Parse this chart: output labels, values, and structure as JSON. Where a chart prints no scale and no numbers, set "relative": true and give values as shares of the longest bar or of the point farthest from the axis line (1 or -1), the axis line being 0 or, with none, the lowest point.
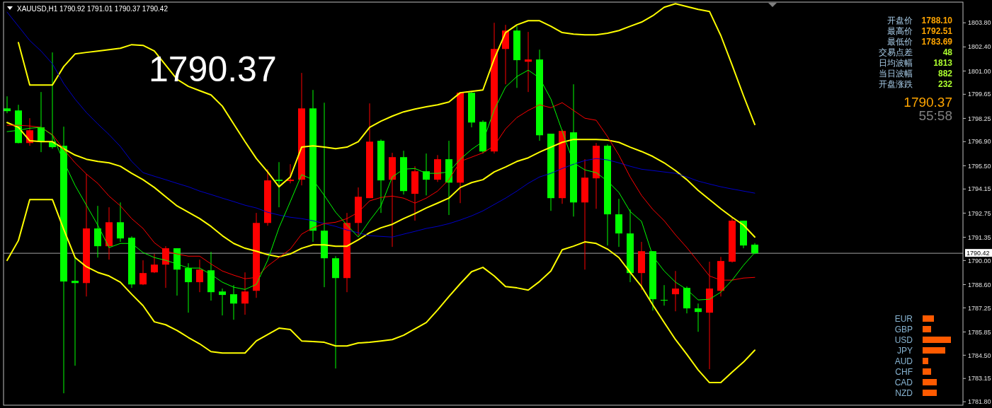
{
  "chart_data": [
    {
      "type": "candlestick",
      "title": "XAUUSD,H1  1790.92 1791.01 1790.37 1790.42",
      "categories": [
        null,
        null,
        null,
        null,
        null,
        null,
        null,
        null,
        null,
        null,
        null,
        null,
        null,
        null,
        null,
        null,
        null,
        null,
        null,
        null,
        null,
        null,
        null,
        null,
        null,
        null,
        null,
        null,
        null,
        null,
        null,
        null,
        null,
        null,
        null,
        null,
        null,
        null,
        null,
        null,
        null,
        null,
        null,
        null,
        null,
        null,
        null,
        null,
        null,
        null,
        null,
        null,
        null,
        null,
        null,
        null,
        null,
        null,
        null,
        null,
        null,
        null,
        null,
        null,
        null,
        null,
        null
      ],
      "ylim": [
        1781.6,
        1805.0
      ],
      "yticks": [
        {
          "value": 1803.8,
          "label": "1803.80"
        },
        {
          "value": 1802.4,
          "label": "1802.40"
        },
        {
          "value": 1801,
          "label": "1801.00"
        },
        1799.65,
        1798.25,
        {
          "value": 1796.9,
          "label": "1796.90"
        },
        {
          "value": 1795.5,
          "label": "1795.50"
        },
        1794.15,
        1792.75,
        1791.35,
        {
          "value": 1790,
          "label": "1790.00"
        },
        {
          "value": 1788.6,
          "label": "1788.60"
        },
        1787.25,
        1785.85,
        {
          "value": 1784.5,
          "label": "1784.50"
        },
        1783.15,
        {
          "value": 1781.8,
          "label": "1781.80"
        }
      ],
      "tick_labels": "y",
      "series": [
        {
          "type": "line",
          "color": "#ffff00",
          "values": [
            null,
            1802.65,
            1800.19,
            1800.19,
            1800.19,
            1801.26,
            1801.99,
            1802.08,
            1802.16,
            1802.24,
            1802.32,
            1802.53,
            1802.49,
            1802.16,
            1801.34,
            1800.52,
            1800.11,
            1799.86,
            1799.61,
            1798.96,
            1797.93,
            1796.9,
            1795.92,
            1795.14,
            1794.28,
            1794.85,
            1796.58,
            1796.66,
            1796.58,
            1796.49,
            1796.58,
            1796.9,
            1797.73,
            1798.09,
            1798.38,
            1798.63,
            1798.79,
            1798.92,
            1799.04,
            1799.2,
            1799.74,
            1799.82,
            1799.9,
            1801.71,
            1803.23,
            1803.68,
            1803.92,
            1803.92,
            1803.6,
            1803.23,
            1803.14,
            1803.1,
            1803.1,
            1803.19,
            1803.35,
            1803.6,
            1803.84,
            1804.21,
            1804.7,
            1804.91,
            1804.74,
            1804.58,
            1804.46,
            1803.06,
            1801.34,
            1799.57,
            1797.89
          ]
        },
        {
          "type": "line",
          "color": "#ffff00",
          "values": [
            1798.01,
            1797.73,
            1796.95,
            1796.9,
            1796.9,
            1796.49,
            1796.12,
            1795.88,
            1795.75,
            1795.67,
            1795.47,
            1795.06,
            1794.69,
            1794.24,
            1793.7,
            1793.17,
            1792.8,
            1792.43,
            1791.98,
            1791.44,
            1790.99,
            1790.71,
            1790.54,
            1790.34,
            1790.21,
            1790.38,
            1790.71,
            1790.91,
            1790.91,
            1790.83,
            1790.83,
            1791.2,
            1791.61,
            1791.9,
            1792.1,
            1792.43,
            1792.72,
            1793.05,
            1793.33,
            1793.62,
            1794.24,
            1794.52,
            1794.69,
            1795.14,
            1795.43,
            1795.75,
            1795.96,
            1796.29,
            1796.58,
            1796.86,
            1797.03,
            1797.03,
            1797.03,
            1796.99,
            1796.86,
            1796.58,
            1796.33,
            1796.04,
            1795.67,
            1795.22,
            1794.69,
            1794.07,
            1793.54,
            1793.0,
            1792.51,
            1792.06,
            1791.36
          ]
        },
        {
          "type": "line",
          "color": "#ffff00",
          "values": [
            1790.01,
            1791.16,
            1793.54,
            1793.54,
            1793.54,
            1791.81,
            1790.17,
            1789.64,
            1789.31,
            1789.1,
            1788.74,
            1788.04,
            1787.38,
            1786.44,
            1786.27,
            1785.94,
            1785.53,
            1785.16,
            1784.71,
            1784.63,
            1784.63,
            1784.63,
            1785.33,
            1785.7,
            1786.07,
            1785.99,
            1785.33,
            1785.29,
            1785.25,
            1785.04,
            1785.04,
            1785.21,
            1785.25,
            1785.33,
            1785.41,
            1785.66,
            1786.03,
            1786.4,
            1787.13,
            1787.91,
            1788.65,
            1789.35,
            1789.6,
            1789.1,
            1788.49,
            1788.41,
            1788.28,
            1788.78,
            1789.39,
            1790.62,
            1790.83,
            1791.08,
            1790.99,
            1790.66,
            1790.17,
            1789.31,
            1788.49,
            1787.42,
            1786.4,
            1785.41,
            1784.55,
            1783.65,
            1782.91,
            1782.91,
            1783.52,
            1784.1,
            1784.79
          ]
        },
        {
          "type": "line",
          "color": "#0000c8",
          "values": [
            1804.42,
            1803.6,
            1802.77,
            1802.16,
            1801.42,
            1800.27,
            1799.37,
            1798.59,
            1797.93,
            1797.31,
            1796.62,
            1795.75,
            1795.1,
            1794.89,
            1794.69,
            1794.48,
            1794.28,
            1794.03,
            1793.83,
            1793.62,
            1793.42,
            1793.21,
            1793.05,
            1792.8,
            1792.64,
            1792.51,
            1792.43,
            1792.31,
            1792.14,
            1791.98,
            1791.77,
            1791.61,
            1791.44,
            1791.4,
            1791.36,
            1791.53,
            1791.69,
            1791.86,
            1791.98,
            1792.14,
            1792.35,
            1792.59,
            1792.88,
            1793.25,
            1793.62,
            1794.03,
            1794.48,
            1794.85,
            1795.06,
            1795.34,
            1795.59,
            1795.8,
            1795.92,
            1795.84,
            1795.67,
            1795.47,
            1795.3,
            1795.22,
            1795.14,
            1795.06,
            1794.85,
            1794.61,
            1794.44,
            1794.28,
            1794.15,
            1794.03,
            1793.91
          ]
        },
        {
          "type": "line",
          "color": "#ff0000",
          "values": [
            1797.85,
            1797.85,
            1797.81,
            1797.73,
            1797.31,
            1796.45,
            1795.67,
            1795.02,
            1794.48,
            1793.74,
            1793.17,
            1792.43,
            1791.86,
            1791.03,
            1790.54,
            1790.38,
            1790.25,
            1790.25,
            1789.8,
            1789.39,
            1789.15,
            1788.94,
            1789.02,
            1789.68,
            1790.17,
            1790.66,
            1791.53,
            1791.9,
            1792.14,
            1792.22,
            1792.43,
            1792.8,
            1793.46,
            1793.66,
            1793.74,
            1793.62,
            1793.33,
            1793.62,
            1794.03,
            1794.69,
            1795.75,
            1796.0,
            1796.25,
            1796.66,
            1797.64,
            1798.3,
            1798.71,
            1799.04,
            1798.87,
            1799.16,
            1798.71,
            1798.26,
            1798.14,
            1797.19,
            1796.12,
            1794.85,
            1793.78,
            1792.96,
            1792.31,
            1791.49,
            1790.75,
            1789.93,
            1789.1,
            1788.86,
            1788.86,
            1788.98,
            1789.02
          ]
        },
        {
          "type": "line",
          "color": "#00ff00",
          "values": [
            1797.48,
            1797.56,
            1797.68,
            1797.73,
            1797.27,
            1795.75,
            1794.36,
            1793.21,
            1792.06,
            1790.75,
            1790.99,
            1790.99,
            1790.46,
            1790.17,
            1790.01,
            1789.8,
            1789.56,
            1789.56,
            1789.19,
            1788.74,
            1788.45,
            1788.32,
            1788.61,
            1790.01,
            1791.9,
            1793.42,
            1794.98,
            1794.69,
            1793.78,
            1792.8,
            1792.06,
            1791.36,
            1792.31,
            1793.17,
            1794.85,
            1795.3,
            1795.34,
            1795.06,
            1795.06,
            1795.14,
            1795.88,
            1796.45,
            1796.9,
            1798.75,
            1800.07,
            1800.68,
            1801.05,
            1800.6,
            1799.37,
            1797.52,
            1795.67,
            1795.26,
            1795.1,
            1794.61,
            1793.95,
            1792.84,
            1792.27,
            1790.25,
            1789.39,
            1788.74,
            1788.32,
            1787.71,
            1787.75,
            1788.16,
            1788.86,
            1789.72,
            1790.46
          ]
        },
        {
          "type": "candlestick",
          "ohlc": [
            [
              1798.83,
              1799.53,
              1798.55,
              1798.67
            ],
            [
              1798.71,
              1799.04,
              1796.8,
              1796.82
            ],
            [
              1796.82,
              1798.26,
              1796.66,
              1797.56
            ],
            [
              1797.73,
              1799.78,
              1796.29,
              1796.9
            ],
            [
              1796.9,
              1802.08,
              1796.49,
              1796.58
            ],
            [
              1796.66,
              1797.77,
              1782.29,
              1788.78
            ],
            [
              1788.82,
              1790.21,
              1783.89,
              1788.69
            ],
            [
              1788.69,
              1795.02,
              1787.91,
              1791.86
            ],
            [
              1791.86,
              1793.17,
              1790.17,
              1790.83
            ],
            [
              1790.83,
              1793.09,
              1790.05,
              1792.22
            ],
            [
              1792.22,
              1793.37,
              1791.08,
              1791.28
            ],
            [
              1791.32,
              1791.4,
              1788.41,
              1788.61
            ],
            [
              1788.61,
              1790.01,
              1788.57,
              1789.27
            ],
            [
              1789.31,
              1790.38,
              1789.27,
              1789.76
            ],
            [
              1789.76,
              1790.83,
              1788.41,
              1790.71
            ],
            [
              1790.71,
              1790.71,
              1787.96,
              1789.47
            ],
            [
              1789.56,
              1789.84,
              1786.97,
              1788.74
            ],
            [
              1788.74,
              1790.05,
              1788.16,
              1789.47
            ],
            [
              1789.43,
              1790.5,
              1787.67,
              1788.16
            ],
            [
              1788.2,
              1788.37,
              1786.81,
              1788.0
            ],
            [
              1788.04,
              1788.57,
              1786.56,
              1787.5
            ],
            [
              1787.5,
              1789.31,
              1786.85,
              1788.2
            ],
            [
              1788.24,
              1792.76,
              1787.83,
              1792.18
            ],
            [
              1792.18,
              1795.3,
              1792.02,
              1794.65
            ],
            [
              1794.69,
              1795.71,
              1793.09,
              1794.61
            ],
            [
              1794.61,
              1795.59,
              1794.48,
              1794.69
            ],
            [
              1794.69,
              1800.89,
              1794.36,
              1798.83
            ],
            [
              1798.83,
              1799.9,
              1791.08,
              1791.73
            ],
            [
              1791.73,
              1799.16,
              1788.45,
              1790.13
            ],
            [
              1790.13,
              1790.25,
              1783.73,
              1788.98
            ],
            [
              1788.98,
              1792.76,
              1788.16,
              1792.18
            ],
            [
              1792.18,
              1794.24,
              1791.44,
              1793.7
            ],
            [
              1793.62,
              1799.12,
              1793.62,
              1796.9
            ],
            [
              1796.95,
              1797.03,
              1792.76,
              1794.65
            ],
            [
              1794.69,
              1796.25,
              1790.79,
              1796.0
            ],
            [
              1796.0,
              1796.37,
              1793.83,
              1794.03
            ],
            [
              1793.87,
              1795.47,
              1792.31,
              1795.18
            ],
            [
              1795.18,
              1796.21,
              1793.78,
              1794.69
            ],
            [
              1794.69,
              1796.12,
              1794.56,
              1795.88
            ],
            [
              1795.88,
              1796.95,
              1792.64,
              1794.52
            ],
            [
              1794.52,
              1799.78,
              1793.33,
              1799.74
            ],
            [
              1799.74,
              1799.78,
              1797.73,
              1798.01
            ],
            [
              1798.05,
              1798.14,
              1796.21,
              1796.33
            ],
            [
              1796.33,
              1803.8,
              1796.21,
              1802.28
            ],
            [
              1802.28,
              1803.68,
              1800.23,
              1803.35
            ],
            [
              1803.35,
              1803.6,
              1800.02,
              1801.63
            ],
            [
              1801.54,
              1803.27,
              1799.78,
              1801.67
            ],
            [
              1801.67,
              1802.24,
              1796.95,
              1797.27
            ],
            [
              1797.36,
              1797.36,
              1792.88,
              1793.62
            ],
            [
              1793.62,
              1797.6,
              1793.29,
              1797.52
            ],
            [
              1797.44,
              1800.23,
              1792.55,
              1793.37
            ],
            [
              1793.37,
              1795.88,
              1789.47,
              1794.81
            ],
            [
              1794.77,
              1796.82,
              1793.0,
              1796.66
            ],
            [
              1796.66,
              1796.74,
              1790.87,
              1792.68
            ],
            [
              1792.68,
              1793.58,
              1790.79,
              1791.57
            ],
            [
              1791.57,
              1792.96,
              1788.74,
              1789.27
            ],
            [
              1789.27,
              1791.08,
              1788.28,
              1790.54
            ],
            [
              1790.54,
              1790.54,
              1787.09,
              1787.75
            ],
            [
              1787.71,
              1788.57,
              1787.38,
              1787.67
            ],
            [
              1788.04,
              1789.39,
              1787.05,
              1788.37
            ],
            [
              1788.41,
              1788.49,
              1786.93,
              1787.22
            ],
            [
              1787.22,
              1787.5,
              1785.86,
              1787.01
            ],
            [
              1786.97,
              1789.93,
              1783.69,
              1788.37
            ],
            [
              1788.24,
              1790.21,
              1787.91,
              1789.97
            ],
            [
              1789.93,
              1792.51,
              1789.88,
              1792.31
            ],
            [
              1792.31,
              1792.31,
              1790.71,
              1790.87
            ],
            [
              1790.92,
              1791.01,
              1790.37,
              1790.42
            ]
          ],
          "colors": [
            "#00ff00",
            "#00ff00",
            "#ff0000",
            "#00ff00",
            "#00ff00",
            "#00ff00",
            "#00ff00",
            "#ff0000",
            "#00ff00",
            "#ff0000",
            "#00ff00",
            "#00ff00",
            "#ff0000",
            "#ff0000",
            "#ff0000",
            "#00ff00",
            "#00ff00",
            "#ff0000",
            "#00ff00",
            "#00ff00",
            "#00ff00",
            "#ff0000",
            "#ff0000",
            "#ff0000",
            "#00ff00",
            "#ff0000",
            "#ff0000",
            "#00ff00",
            "#00ff00",
            "#00ff00",
            "#ff0000",
            "#ff0000",
            "#ff0000",
            "#00ff00",
            "#ff0000",
            "#00ff00",
            "#ff0000",
            "#00ff00",
            "#ff0000",
            "#00ff00",
            "#ff0000",
            "#00ff00",
            "#00ff00",
            "#ff0000",
            "#ff0000",
            "#00ff00",
            "#ff0000",
            "#00ff00",
            "#00ff00",
            "#ff0000",
            "#00ff00",
            "#ff0000",
            "#ff0000",
            "#00ff00",
            "#00ff00",
            "#00ff00",
            "#ff0000",
            "#00ff00",
            "#00ff00",
            "#ff0000",
            "#00ff00",
            "#00ff00",
            "#ff0000",
            "#ff0000",
            "#ff0000",
            "#00ff00",
            "#00ff00"
          ]
        }
      ],
      "ref_lines": [
        {
          "axis": "y",
          "value": 1790.42,
          "label": "1790.42",
          "color": "#a0a0a0"
        }
      ],
      "annotations": [
        "1790.37",
        "开盘价 1788.10",
        "最高价 1792.51",
        "最低价 1783.69",
        "交易点差 48",
        "日均波幅 1813",
        "当日波幅 882",
        "开盘涨跌 232",
        "1790.37",
        "55:58"
      ]
    },
    {
      "type": "bar",
      "orientation": "horizontal",
      "relative": true,
      "categories": [
        "EUR",
        "GBP",
        "USD",
        "JPY",
        "AUD",
        "CHF",
        "CAD",
        "NZD"
      ],
      "values": [
        0.4,
        0.3,
        1,
        0.8,
        0.2,
        0.3,
        0.5,
        0.5
      ],
      "color": "#ff5a00"
    }
  ]
}
